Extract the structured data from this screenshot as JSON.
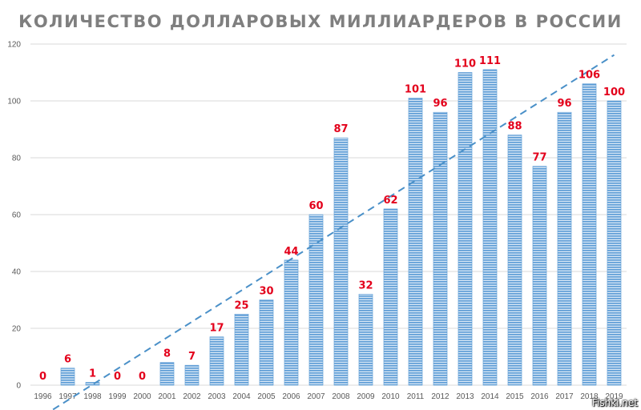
{
  "chart_data": {
    "type": "bar",
    "title": "КОЛИЧЕСТВО ДОЛЛАРОВЫХ МИЛЛИАРДЕРОВ В РОССИИ",
    "xlabel": "",
    "ylabel": "",
    "categories": [
      "1996",
      "1997",
      "1998",
      "1999",
      "2000",
      "2001",
      "2002",
      "2003",
      "2004",
      "2005",
      "2006",
      "2007",
      "2008",
      "2009",
      "2010",
      "2011",
      "2012",
      "2013",
      "2014",
      "2015",
      "2016",
      "2017",
      "2018",
      "2019"
    ],
    "values": [
      0,
      6,
      1,
      0,
      0,
      8,
      7,
      17,
      25,
      30,
      44,
      60,
      87,
      32,
      62,
      101,
      96,
      110,
      111,
      88,
      77,
      96,
      106,
      100
    ],
    "ylim": [
      0,
      120
    ],
    "yticks": [
      0,
      20,
      40,
      60,
      80,
      100,
      120
    ],
    "grid": true,
    "trendline": "linear",
    "bar_color": "#5b9bd5",
    "label_color": "#e3001b"
  },
  "watermark": "Fishki.net"
}
